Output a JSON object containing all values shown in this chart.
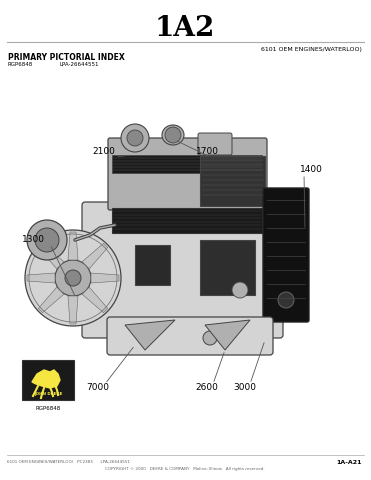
{
  "title": "1A2",
  "subtitle_right": "6101 OEM ENGINES/WATERLOO)",
  "section_label": "PRIMARY PICTORIAL INDEX",
  "sub_label1": "RGP6848",
  "sub_label2": "LPA-26644551",
  "footer_left": "6101 OEM ENGINES/WATERLOO)   PC2385      LPA-26644551",
  "footer_right": "1A-A21",
  "footer_center": "COPYRIGHT © 2000   DEERE & COMPANY   Moline, Illinois   All rights reserved.",
  "logo_label": "RGP6848",
  "page_bg": "#ffffff",
  "line_color": "#555555",
  "text_color": "#000000",
  "footer_color": "#666666",
  "engine_gray_light": "#d4d4d4",
  "engine_gray_mid": "#b0b0b0",
  "engine_gray_dark": "#888888",
  "engine_black": "#1a1a1a",
  "engine_outline": "#444444"
}
